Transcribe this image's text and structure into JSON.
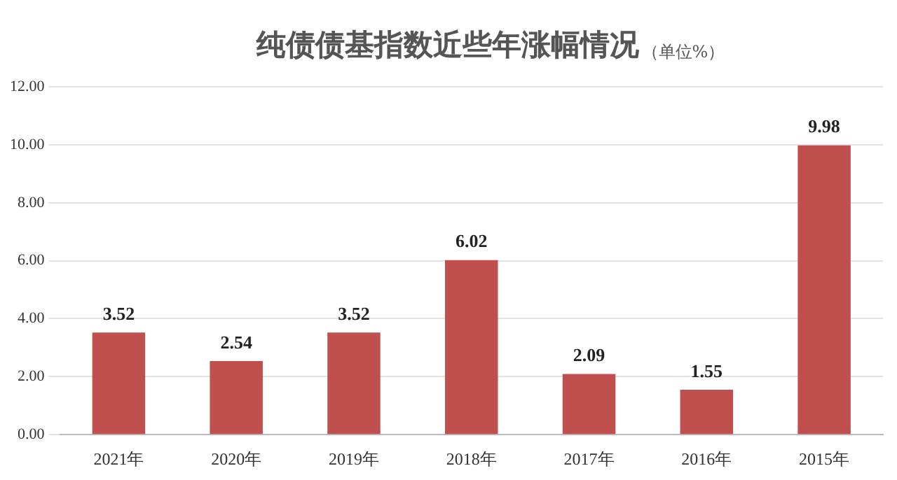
{
  "chart_data": {
    "type": "bar",
    "title": "纯债债基指数近些年涨幅情况",
    "subtitle": "（单位%）",
    "categories": [
      "2021年",
      "2020年",
      "2019年",
      "2018年",
      "2017年",
      "2016年",
      "2015年"
    ],
    "values": [
      3.52,
      2.54,
      3.52,
      6.02,
      2.09,
      1.55,
      9.98
    ],
    "color": "#c0504d",
    "ylim": [
      0,
      12
    ],
    "yticks": [
      {
        "value": 0,
        "label": "0.00"
      },
      {
        "value": 2,
        "label": "2.00"
      },
      {
        "value": 4,
        "label": "4.00"
      },
      {
        "value": 6,
        "label": "6.00"
      },
      {
        "value": 8,
        "label": "8.00"
      },
      {
        "value": 10,
        "label": "10.00"
      },
      {
        "value": 12,
        "label": "12.00"
      }
    ],
    "grid": "y",
    "data_labels": true,
    "legend": false
  }
}
